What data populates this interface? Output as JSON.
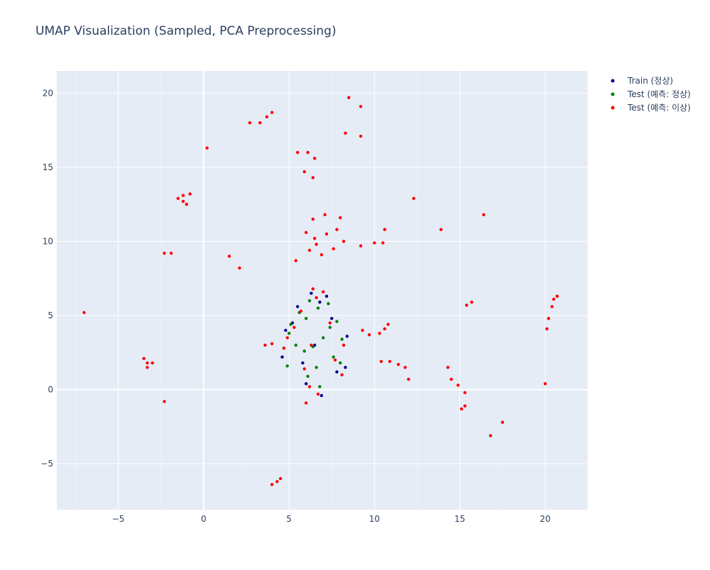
{
  "chart_data": {
    "type": "scatter",
    "title": "UMAP Visualization (Sampled, PCA Preprocessing)",
    "xlabel": "",
    "ylabel": "",
    "xlim": [
      -8.6,
      22.5
    ],
    "ylim": [
      -8.1,
      21.5
    ],
    "x_ticks": [
      -5,
      0,
      5,
      10,
      15,
      20
    ],
    "y_ticks": [
      -5,
      0,
      5,
      10,
      15,
      20
    ],
    "tick_labels_x": [
      "−5",
      "0",
      "5",
      "10",
      "15",
      "20"
    ],
    "tick_labels_y": [
      "−5",
      "0",
      "5",
      "10",
      "15",
      "20"
    ],
    "grid": true,
    "legend_position": "top-right, outside plot",
    "series": [
      {
        "name": "Train (정상)",
        "color": "#00008b",
        "points": [
          [
            6.5,
            3.0
          ],
          [
            5.2,
            4.5
          ],
          [
            7.8,
            1.2
          ],
          [
            6.8,
            5.9
          ],
          [
            4.6,
            2.2
          ],
          [
            8.4,
            3.6
          ],
          [
            6.0,
            0.4
          ],
          [
            7.2,
            6.3
          ],
          [
            5.5,
            5.6
          ],
          [
            8.3,
            1.5
          ],
          [
            4.8,
            4.0
          ],
          [
            6.9,
            -0.4
          ],
          [
            7.5,
            4.8
          ],
          [
            5.8,
            1.8
          ],
          [
            6.3,
            6.5
          ]
        ]
      },
      {
        "name": "Test (예측: 정상)",
        "color": "#008000",
        "points": [
          [
            6.4,
            2.9
          ],
          [
            5.0,
            3.8
          ],
          [
            7.6,
            2.2
          ],
          [
            6.7,
            5.5
          ],
          [
            4.9,
            1.6
          ],
          [
            8.1,
            3.4
          ],
          [
            6.1,
            0.9
          ],
          [
            7.3,
            5.8
          ],
          [
            5.6,
            5.2
          ],
          [
            8.0,
            1.8
          ],
          [
            5.1,
            4.4
          ],
          [
            6.8,
            0.2
          ],
          [
            7.4,
            4.2
          ],
          [
            5.9,
            2.6
          ],
          [
            6.2,
            6.0
          ],
          [
            7.0,
            3.5
          ],
          [
            5.4,
            3.0
          ],
          [
            6.6,
            1.5
          ],
          [
            7.8,
            4.6
          ],
          [
            6.0,
            4.8
          ]
        ]
      },
      {
        "name": "Test (예측: 이상)",
        "color": "#ff0000",
        "points": [
          [
            6.3,
            3.0
          ],
          [
            5.3,
            4.2
          ],
          [
            7.7,
            2.0
          ],
          [
            6.6,
            6.2
          ],
          [
            4.7,
            2.8
          ],
          [
            8.2,
            3.0
          ],
          [
            6.2,
            0.2
          ],
          [
            7.0,
            6.6
          ],
          [
            5.7,
            5.3
          ],
          [
            8.1,
            1.0
          ],
          [
            4.9,
            3.5
          ],
          [
            6.7,
            -0.3
          ],
          [
            7.4,
            4.5
          ],
          [
            5.9,
            1.4
          ],
          [
            6.4,
            6.8
          ],
          [
            6.0,
            -0.9
          ],
          [
            4.0,
            3.1
          ],
          [
            3.6,
            3.0
          ],
          [
            6.4,
            11.5
          ],
          [
            7.1,
            11.8
          ],
          [
            8.0,
            11.6
          ],
          [
            6.0,
            10.6
          ],
          [
            7.2,
            10.5
          ],
          [
            8.2,
            10.0
          ],
          [
            6.6,
            9.8
          ],
          [
            7.6,
            9.5
          ],
          [
            6.9,
            9.1
          ],
          [
            9.2,
            9.7
          ],
          [
            10.0,
            9.9
          ],
          [
            10.5,
            9.9
          ],
          [
            10.6,
            10.8
          ],
          [
            6.5,
            10.2
          ],
          [
            7.8,
            10.8
          ],
          [
            6.2,
            9.4
          ],
          [
            5.5,
            16.0
          ],
          [
            6.1,
            16.0
          ],
          [
            6.5,
            15.6
          ],
          [
            5.9,
            14.7
          ],
          [
            6.4,
            14.3
          ],
          [
            3.3,
            18.0
          ],
          [
            2.7,
            18.0
          ],
          [
            3.7,
            18.4
          ],
          [
            4.0,
            18.7
          ],
          [
            8.5,
            19.7
          ],
          [
            9.2,
            19.1
          ],
          [
            8.3,
            17.3
          ],
          [
            9.2,
            17.1
          ],
          [
            0.2,
            16.3
          ],
          [
            -1.2,
            13.1
          ],
          [
            -1.2,
            12.7
          ],
          [
            -1.0,
            12.5
          ],
          [
            -0.8,
            13.2
          ],
          [
            -1.5,
            12.9
          ],
          [
            -2.3,
            9.2
          ],
          [
            -1.9,
            9.2
          ],
          [
            1.5,
            9.0
          ],
          [
            2.1,
            8.2
          ],
          [
            5.4,
            8.7
          ],
          [
            12.3,
            12.9
          ],
          [
            13.9,
            10.8
          ],
          [
            16.4,
            11.8
          ],
          [
            -7.0,
            5.2
          ],
          [
            -3.5,
            2.1
          ],
          [
            -3.3,
            1.8
          ],
          [
            -3.0,
            1.8
          ],
          [
            -3.3,
            1.5
          ],
          [
            -2.3,
            -0.8
          ],
          [
            10.3,
            3.8
          ],
          [
            10.6,
            4.1
          ],
          [
            10.8,
            4.4
          ],
          [
            9.7,
            3.7
          ],
          [
            9.3,
            4.0
          ],
          [
            10.4,
            1.9
          ],
          [
            10.9,
            1.9
          ],
          [
            11.4,
            1.7
          ],
          [
            11.8,
            1.5
          ],
          [
            12.0,
            0.7
          ],
          [
            14.3,
            1.5
          ],
          [
            14.5,
            0.7
          ],
          [
            14.9,
            0.3
          ],
          [
            15.3,
            -0.2
          ],
          [
            15.3,
            -1.1
          ],
          [
            15.1,
            -1.3
          ],
          [
            15.4,
            5.7
          ],
          [
            15.7,
            5.9
          ],
          [
            16.8,
            -3.1
          ],
          [
            17.5,
            -2.2
          ],
          [
            20.0,
            0.4
          ],
          [
            20.1,
            4.1
          ],
          [
            20.2,
            4.8
          ],
          [
            20.4,
            5.6
          ],
          [
            20.5,
            6.1
          ],
          [
            20.7,
            6.3
          ],
          [
            4.0,
            -6.4
          ],
          [
            4.3,
            -6.2
          ],
          [
            4.5,
            -6.0
          ]
        ]
      }
    ]
  }
}
